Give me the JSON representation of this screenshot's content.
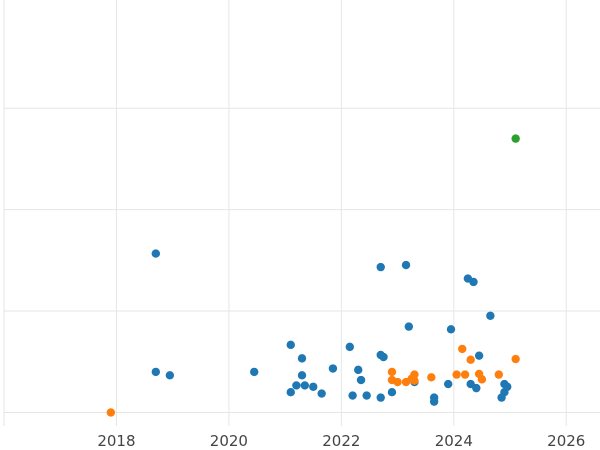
{
  "chart_data": {
    "type": "scatter",
    "title": "",
    "xlabel": "",
    "ylabel": "",
    "xlim": [
      2016.0,
      2026.6
    ],
    "ylim": [
      -0.2,
      6.1
    ],
    "grid": true,
    "x_ticks": [
      2018,
      2020,
      2022,
      2024,
      2026
    ],
    "x_tick_labels": [
      "2018",
      "2020",
      "2022",
      "2024",
      "2026"
    ],
    "y_gridlines": [
      0,
      1.5,
      3,
      4.5
    ],
    "y_tick_labels_visible": false,
    "legend": "none",
    "series": [
      {
        "color": "#1f77b4",
        "points": [
          [
            2018.7,
            2.35
          ],
          [
            2018.7,
            0.6
          ],
          [
            2018.95,
            0.55
          ],
          [
            2020.45,
            0.6
          ],
          [
            2021.1,
            1.0
          ],
          [
            2021.1,
            0.3
          ],
          [
            2021.2,
            0.4
          ],
          [
            2021.3,
            0.8
          ],
          [
            2021.3,
            0.55
          ],
          [
            2021.35,
            0.4
          ],
          [
            2021.5,
            0.38
          ],
          [
            2021.65,
            0.28
          ],
          [
            2021.85,
            0.65
          ],
          [
            2022.15,
            0.97
          ],
          [
            2022.2,
            0.25
          ],
          [
            2022.3,
            0.63
          ],
          [
            2022.35,
            0.48
          ],
          [
            2022.45,
            0.25
          ],
          [
            2022.7,
            0.85
          ],
          [
            2022.7,
            0.22
          ],
          [
            2022.7,
            2.15
          ],
          [
            2022.75,
            0.82
          ],
          [
            2022.9,
            0.3
          ],
          [
            2023.15,
            2.18
          ],
          [
            2023.2,
            1.27
          ],
          [
            2023.3,
            0.45
          ],
          [
            2023.65,
            0.22
          ],
          [
            2023.65,
            0.16
          ],
          [
            2023.9,
            0.42
          ],
          [
            2023.95,
            1.23
          ],
          [
            2024.25,
            1.98
          ],
          [
            2024.3,
            0.42
          ],
          [
            2024.35,
            1.93
          ],
          [
            2024.4,
            0.36
          ],
          [
            2024.45,
            0.84
          ],
          [
            2024.65,
            1.43
          ],
          [
            2024.85,
            0.22
          ],
          [
            2024.9,
            0.3
          ],
          [
            2024.9,
            0.42
          ],
          [
            2024.95,
            0.38
          ]
        ]
      },
      {
        "color": "#ff7f0e",
        "points": [
          [
            2017.9,
            0.0
          ],
          [
            2022.9,
            0.6
          ],
          [
            2022.9,
            0.48
          ],
          [
            2023.0,
            0.45
          ],
          [
            2023.15,
            0.45
          ],
          [
            2023.25,
            0.5
          ],
          [
            2023.3,
            0.56
          ],
          [
            2023.3,
            0.47
          ],
          [
            2023.6,
            0.52
          ],
          [
            2024.05,
            0.56
          ],
          [
            2024.15,
            0.94
          ],
          [
            2024.2,
            0.56
          ],
          [
            2024.3,
            0.78
          ],
          [
            2024.45,
            0.57
          ],
          [
            2024.5,
            0.49
          ],
          [
            2024.8,
            0.56
          ],
          [
            2025.1,
            0.79
          ]
        ]
      },
      {
        "color": "#2ca02c",
        "points": [
          [
            2025.1,
            4.05
          ]
        ]
      }
    ]
  }
}
